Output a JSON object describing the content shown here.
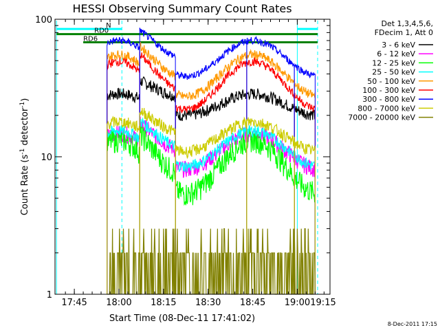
{
  "chart_data": {
    "type": "line",
    "title": "HESSI Observing Summary Count Rates",
    "xlabel": "Start Time (08-Dec-11 17:41:02)",
    "ylabel_main": "Count Rate (s",
    "ylabel_sup1": "-1",
    "ylabel_mid": " detector",
    "ylabel_sup2": "-1",
    "ylabel_end": ")",
    "yscale": "log",
    "ylim": [
      1,
      100
    ],
    "xlim_minutes": [
      17.5,
      110
    ],
    "x_ticks": [
      {
        "label": "17:45",
        "minute": 24
      },
      {
        "label": "18:00",
        "minute": 39
      },
      {
        "label": "18:15",
        "minute": 54
      },
      {
        "label": "18:30",
        "minute": 69
      },
      {
        "label": "18:45",
        "minute": 84
      },
      {
        "label": "19:00",
        "minute": 99
      },
      {
        "label": "19:15",
        "minute": 114
      }
    ],
    "y_ticks": [
      {
        "label": "1",
        "value": 1
      },
      {
        "label": "10",
        "value": 10
      },
      {
        "label": "100",
        "value": 100
      }
    ],
    "legend_header": [
      "Det 1,3,4,5,6,",
      "FDecim 1, Att 0"
    ],
    "series": [
      {
        "name": "3 - 6 keV",
        "color": "#000000",
        "base": 24,
        "amp": 0.18,
        "noise": 0.1
      },
      {
        "name": "6 - 12 keV",
        "color": "#ff00ff",
        "base": 11,
        "amp": 0.3,
        "noise": 0.14
      },
      {
        "name": "12 - 25 keV",
        "color": "#00ff00",
        "base": 8.5,
        "amp": 0.45,
        "noise": 0.2
      },
      {
        "name": "25 - 50 keV",
        "color": "#00ffff",
        "base": 11.5,
        "amp": 0.3,
        "noise": 0.1
      },
      {
        "name": "50 - 100 keV",
        "color": "#ff9900",
        "base": 39,
        "amp": 0.35,
        "noise": 0.08
      },
      {
        "name": "100 - 300 keV",
        "color": "#ff0000",
        "base": 33,
        "amp": 0.4,
        "noise": 0.07
      },
      {
        "name": "300 - 800 keV",
        "color": "#0000ff",
        "base": 52,
        "amp": 0.3,
        "noise": 0.06
      },
      {
        "name": "800 - 7000 keV",
        "color": "#cccc00",
        "base": 14,
        "amp": 0.25,
        "noise": 0.1
      },
      {
        "name": "7000 - 20000 keV",
        "color": "#808000",
        "base": 1.8,
        "amp": 0.0,
        "noise": 0.0
      }
    ],
    "data_segments_minutes": [
      [
        35,
        46
      ],
      [
        46,
        58
      ],
      [
        58,
        82
      ],
      [
        82,
        98
      ],
      [
        98,
        105
      ]
    ],
    "flags": [
      {
        "label": "N",
        "color": "#00ffff",
        "y_value": 85,
        "x_start": 18.0,
        "x_end": 40.0
      },
      {
        "label": "",
        "color": "#00ffff",
        "y_value": 85,
        "x_start": 99.0,
        "x_end": 110.0
      },
      {
        "label": "RD0",
        "color": "#008000",
        "y_value": 78,
        "x_start": 18.0,
        "x_end": 110.0
      },
      {
        "label": "RD6",
        "color": "#008000",
        "y_value": 68,
        "x_start": 27.0,
        "x_end": 110.0
      }
    ],
    "orbit_lines_minutes": [
      {
        "minute": 18.0,
        "style": "solid",
        "color": "#00ffff"
      },
      {
        "minute": 40.0,
        "style": "dashed",
        "color": "#00ffff"
      },
      {
        "minute": 99.0,
        "style": "solid",
        "color": "#00ffff"
      },
      {
        "minute": 115.0,
        "style": "dashed",
        "color": "#00ffff"
      }
    ],
    "footer_date": "8-Dec-2011 17:15"
  }
}
